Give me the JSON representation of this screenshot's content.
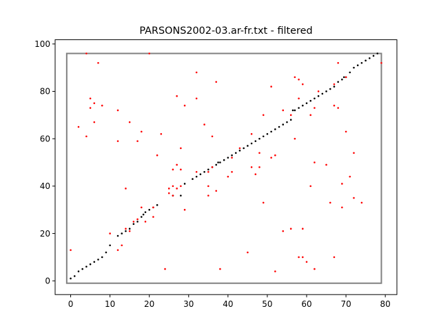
{
  "chart_data": {
    "type": "scatter",
    "title": "PARSONS2002-03.ar-fr.txt - filtered",
    "xlabel": "",
    "ylabel": "",
    "xlim": [
      -3.95,
      82.95
    ],
    "ylim": [
      -5.8,
      101.8
    ],
    "x_ticks": [
      0,
      10,
      20,
      30,
      40,
      50,
      60,
      70,
      80
    ],
    "y_ticks": [
      0,
      20,
      40,
      60,
      80,
      100
    ],
    "grid": false,
    "colors": {
      "alignment": "#000000",
      "candidates": "#ff0000",
      "box": "#808080"
    },
    "box": {
      "x": [
        -1,
        79
      ],
      "y": [
        -1,
        96
      ]
    },
    "series": [
      {
        "color": "#000000",
        "points": [
          [
            0,
            1
          ],
          [
            1,
            2
          ],
          [
            2,
            4
          ],
          [
            3,
            5
          ],
          [
            4,
            6
          ],
          [
            5,
            7
          ],
          [
            6,
            8
          ],
          [
            7,
            9
          ],
          [
            8,
            10
          ],
          [
            9,
            12
          ],
          [
            10,
            15
          ],
          [
            12,
            19
          ],
          [
            13,
            20
          ],
          [
            14,
            21
          ],
          [
            15,
            22
          ],
          [
            16,
            24
          ],
          [
            17,
            25
          ],
          [
            18,
            27
          ],
          [
            18.5,
            28
          ],
          [
            19,
            29
          ],
          [
            20,
            30
          ],
          [
            21,
            31
          ],
          [
            22,
            32
          ],
          [
            26,
            36
          ],
          [
            28,
            36
          ],
          [
            29,
            41
          ],
          [
            31,
            43
          ],
          [
            32,
            44
          ],
          [
            33,
            45
          ],
          [
            34,
            46
          ],
          [
            35,
            47
          ],
          [
            36,
            48
          ],
          [
            37,
            49
          ],
          [
            37.5,
            50
          ],
          [
            38,
            50
          ],
          [
            39,
            51
          ],
          [
            40,
            52
          ],
          [
            41,
            53
          ],
          [
            42,
            54
          ],
          [
            43,
            55
          ],
          [
            44,
            56
          ],
          [
            45,
            57
          ],
          [
            46,
            58
          ],
          [
            47,
            59
          ],
          [
            48,
            60
          ],
          [
            49,
            61
          ],
          [
            50,
            62
          ],
          [
            51,
            63
          ],
          [
            52,
            64
          ],
          [
            53,
            65
          ],
          [
            54,
            66
          ],
          [
            55,
            67
          ],
          [
            56,
            68
          ],
          [
            56.5,
            72
          ],
          [
            57,
            72
          ],
          [
            58,
            73
          ],
          [
            59,
            74
          ],
          [
            60,
            75
          ],
          [
            61,
            76
          ],
          [
            62,
            77
          ],
          [
            63,
            78
          ],
          [
            64,
            79
          ],
          [
            65,
            80
          ],
          [
            66,
            81
          ],
          [
            67,
            82
          ],
          [
            68,
            84
          ],
          [
            69,
            85
          ],
          [
            69.5,
            86
          ],
          [
            70,
            86
          ],
          [
            71,
            88
          ],
          [
            72,
            90
          ],
          [
            73,
            91
          ],
          [
            74,
            92
          ],
          [
            75,
            93
          ],
          [
            76,
            94
          ],
          [
            77,
            95
          ],
          [
            78,
            96
          ]
        ]
      },
      {
        "color": "#ff0000",
        "points": [
          [
            0,
            13
          ],
          [
            2,
            65
          ],
          [
            4,
            61
          ],
          [
            4,
            96
          ],
          [
            5,
            77
          ],
          [
            5,
            73
          ],
          [
            6,
            75
          ],
          [
            6,
            67
          ],
          [
            7,
            92
          ],
          [
            8,
            74
          ],
          [
            10,
            20
          ],
          [
            12,
            72
          ],
          [
            12,
            59
          ],
          [
            12,
            13
          ],
          [
            13,
            15
          ],
          [
            14,
            39
          ],
          [
            14,
            22
          ],
          [
            15,
            67
          ],
          [
            15,
            21
          ],
          [
            16,
            25
          ],
          [
            17,
            59
          ],
          [
            17,
            26
          ],
          [
            18,
            63
          ],
          [
            18,
            31
          ],
          [
            19,
            25
          ],
          [
            20,
            96
          ],
          [
            21,
            27
          ],
          [
            21,
            31
          ],
          [
            22,
            53
          ],
          [
            23,
            62
          ],
          [
            24,
            5
          ],
          [
            25,
            39
          ],
          [
            25,
            37
          ],
          [
            26,
            47
          ],
          [
            26,
            36
          ],
          [
            26,
            40
          ],
          [
            27,
            78
          ],
          [
            27,
            49
          ],
          [
            27,
            39
          ],
          [
            28,
            56
          ],
          [
            28,
            47
          ],
          [
            28,
            40
          ],
          [
            29,
            74
          ],
          [
            29,
            30
          ],
          [
            32,
            88
          ],
          [
            32,
            77
          ],
          [
            32,
            46
          ],
          [
            34,
            66
          ],
          [
            35,
            46
          ],
          [
            35,
            40
          ],
          [
            35,
            36
          ],
          [
            36,
            61
          ],
          [
            36,
            48
          ],
          [
            37,
            84
          ],
          [
            37,
            38
          ],
          [
            38,
            5
          ],
          [
            40,
            44
          ],
          [
            41,
            46
          ],
          [
            41,
            52
          ],
          [
            43,
            56
          ],
          [
            45,
            12
          ],
          [
            46,
            62
          ],
          [
            46,
            48
          ],
          [
            47,
            45
          ],
          [
            48,
            54
          ],
          [
            48,
            48
          ],
          [
            49,
            70
          ],
          [
            49,
            33
          ],
          [
            51,
            82
          ],
          [
            51,
            52
          ],
          [
            52,
            53
          ],
          [
            52,
            4
          ],
          [
            54,
            72
          ],
          [
            54,
            21
          ],
          [
            56,
            22
          ],
          [
            56,
            70
          ],
          [
            57,
            86
          ],
          [
            57,
            60
          ],
          [
            58,
            85
          ],
          [
            58,
            77
          ],
          [
            58,
            10
          ],
          [
            59,
            83
          ],
          [
            59,
            22
          ],
          [
            59,
            10
          ],
          [
            60,
            8
          ],
          [
            61,
            70
          ],
          [
            61,
            40
          ],
          [
            62,
            50
          ],
          [
            62,
            73
          ],
          [
            62,
            5
          ],
          [
            63,
            80
          ],
          [
            65,
            49
          ],
          [
            66,
            33
          ],
          [
            67,
            74
          ],
          [
            67,
            83
          ],
          [
            67,
            10
          ],
          [
            68,
            92
          ],
          [
            68,
            73
          ],
          [
            69,
            31
          ],
          [
            69,
            41
          ],
          [
            70,
            63
          ],
          [
            70,
            86
          ],
          [
            71,
            44
          ],
          [
            72,
            54
          ],
          [
            72,
            35
          ],
          [
            74,
            33
          ],
          [
            79,
            92
          ]
        ]
      }
    ]
  }
}
